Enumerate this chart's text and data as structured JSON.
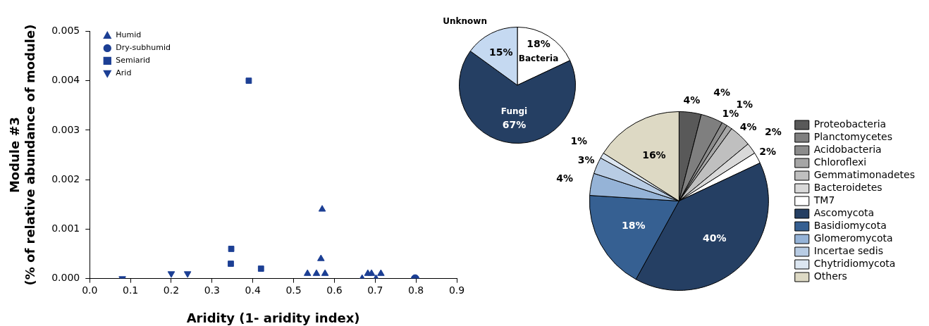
{
  "chart_data": [
    {
      "type": "scatter",
      "xlabel": "Aridity (1- aridity index)",
      "ylabel": "Module #3\n(% of relative abundance of module)",
      "xlim": [
        0,
        0.9
      ],
      "ylim": [
        0,
        0.005
      ],
      "xticks": [
        {
          "value": 0,
          "label": "0.0"
        },
        {
          "value": 0.1,
          "label": "0.1"
        },
        {
          "value": 0.2,
          "label": "0.2"
        },
        {
          "value": 0.3,
          "label": "0.3"
        },
        {
          "value": 0.4,
          "label": "0.4"
        },
        {
          "value": 0.5,
          "label": "0.5"
        },
        {
          "value": 0.6,
          "label": "0.6"
        },
        {
          "value": 0.7,
          "label": "0.7"
        },
        {
          "value": 0.8,
          "label": "0.8"
        },
        {
          "value": 0.9,
          "label": "0.9"
        }
      ],
      "yticks": [
        {
          "value": 0,
          "label": "0.000"
        },
        {
          "value": 0.001,
          "label": "0.001"
        },
        {
          "value": 0.002,
          "label": "0.002"
        },
        {
          "value": 0.003,
          "label": "0.003"
        },
        {
          "value": 0.004,
          "label": "0.004"
        },
        {
          "value": 0.005,
          "label": "0.005"
        }
      ],
      "grid": false,
      "legend": "top left",
      "series": [
        {
          "name": "Humid",
          "color": "#1c3f94",
          "marker": "triangle",
          "x": [
            0.57,
            0.567,
            0.534,
            0.556,
            0.577,
            0.668,
            0.682,
            0.691,
            0.702,
            0.714
          ],
          "values": [
            0.0014,
            0.0004,
            0.0001,
            0.0001,
            0.0001,
            0,
            0.0001,
            0.0001,
            0,
            0.0001
          ]
        },
        {
          "name": "Dry-subhumid",
          "color": "#1c3f94",
          "marker": "circle",
          "x": [
            0.798
          ],
          "values": [
            0
          ]
        },
        {
          "name": "Semiarid",
          "color": "#1c3f94",
          "marker": "square",
          "x": [
            0.39,
            0.347,
            0.346,
            0.42
          ],
          "values": [
            0.004,
            0.0006,
            0.0003,
            0.0002
          ]
        },
        {
          "name": "Arid",
          "color": "#1c3f94",
          "marker": "triangle-down",
          "x": [
            0.08,
            0.2,
            0.24
          ],
          "values": [
            0,
            0.0001,
            0.0001
          ]
        }
      ]
    },
    {
      "type": "pie",
      "categories": [
        "Bacteria",
        "Fungi",
        "Unknown"
      ],
      "values": [
        18,
        67,
        15
      ],
      "colors": [
        "#ffffff",
        "#253f63",
        "#c5d9f1"
      ],
      "value_labels": [
        "18%",
        "67%",
        "15%"
      ]
    },
    {
      "type": "pie",
      "legend": "right",
      "categories": [
        "Proteobacteria",
        "Planctomycetes",
        "Acidobacteria",
        "Chloroflexi",
        "Gemmatimonadetes",
        "Bacteroidetes",
        "TM7",
        "Ascomycota",
        "Basidiomycota",
        "Glomeromycota",
        "Incertae sedis",
        "Chytridiomycota",
        "Others"
      ],
      "values": [
        4,
        4,
        1,
        1,
        4,
        2,
        2,
        40,
        18,
        4,
        3,
        1,
        16
      ],
      "colors": [
        "#595959",
        "#7f7f7f",
        "#8c8c8c",
        "#a6a6a6",
        "#bfbfbf",
        "#d9d9d9",
        "#ffffff",
        "#253f63",
        "#366092",
        "#95b3d7",
        "#b8cce4",
        "#dce6f1",
        "#ddd9c4"
      ],
      "value_labels": [
        "4%",
        "4%",
        "1%",
        "1%",
        "4%",
        "2%",
        "2%",
        "40%",
        "18%",
        "4%",
        "3%",
        "1%",
        "16%"
      ]
    }
  ]
}
